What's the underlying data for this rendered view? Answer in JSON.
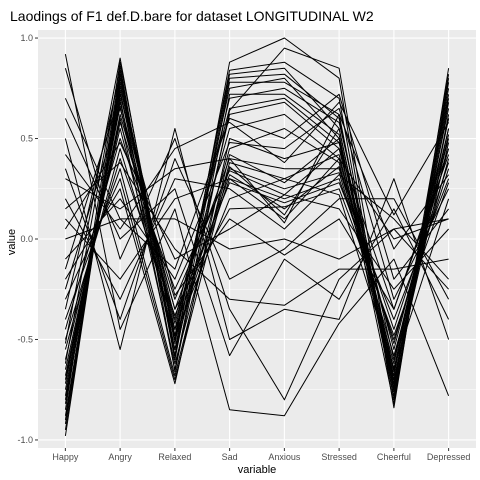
{
  "chart_data": {
    "type": "line",
    "title": "Laodings of F1 def.D.bare for dataset LONGITUDINAL W2",
    "xlabel": "variable",
    "ylabel": "value",
    "categories": [
      "Happy",
      "Angry",
      "Relaxed",
      "Sad",
      "Anxious",
      "Stressed",
      "Cheerful",
      "Depressed"
    ],
    "ylim": [
      -1.04,
      1.04
    ],
    "yticks": [
      -1.0,
      -0.5,
      0.0,
      0.5,
      1.0
    ],
    "ytick_labels": [
      "-1.0",
      "-0.5",
      "0.0",
      "0.5",
      "1.0"
    ],
    "grid": true,
    "panel_background": "#ebebeb",
    "grid_color": "#ffffff",
    "line_color": "#000000",
    "series": [
      {
        "values": [
          -0.98,
          0.82,
          -0.55,
          0.8,
          0.82,
          0.6,
          -0.7,
          0.6
        ]
      },
      {
        "values": [
          -0.95,
          0.8,
          -0.5,
          0.82,
          0.85,
          0.55,
          -0.72,
          0.7
        ]
      },
      {
        "values": [
          -0.92,
          0.78,
          -0.48,
          0.75,
          0.8,
          0.5,
          -0.65,
          0.65
        ]
      },
      {
        "values": [
          -0.9,
          0.84,
          -0.6,
          0.78,
          0.78,
          0.62,
          -0.75,
          0.75
        ]
      },
      {
        "values": [
          -0.88,
          0.76,
          -0.45,
          0.7,
          0.75,
          0.58,
          -0.6,
          0.55
        ]
      },
      {
        "values": [
          -0.85,
          0.88,
          -0.52,
          0.84,
          0.88,
          0.7,
          -0.8,
          0.8
        ]
      },
      {
        "values": [
          -0.82,
          0.72,
          -0.4,
          0.65,
          0.7,
          0.48,
          -0.55,
          0.5
        ]
      },
      {
        "values": [
          -0.8,
          0.7,
          -0.65,
          0.72,
          0.72,
          0.52,
          -0.78,
          0.68
        ]
      },
      {
        "values": [
          -0.78,
          0.74,
          -0.58,
          0.62,
          0.68,
          0.45,
          -0.68,
          0.72
        ]
      },
      {
        "values": [
          -0.75,
          0.68,
          -0.42,
          0.55,
          0.62,
          0.4,
          -0.62,
          0.6
        ]
      },
      {
        "values": [
          -0.72,
          0.66,
          -0.55,
          0.45,
          0.55,
          0.38,
          -0.7,
          0.48
        ]
      },
      {
        "values": [
          -0.7,
          0.62,
          -0.35,
          0.4,
          0.35,
          0.35,
          -0.52,
          0.45
        ]
      },
      {
        "values": [
          -0.68,
          0.6,
          -0.62,
          0.38,
          0.3,
          0.42,
          -0.66,
          0.52
        ]
      },
      {
        "values": [
          -0.65,
          0.58,
          -0.3,
          0.35,
          0.25,
          0.33,
          -0.58,
          0.4
        ]
      },
      {
        "values": [
          -0.6,
          0.55,
          -0.5,
          0.3,
          0.2,
          0.3,
          -0.5,
          0.35
        ]
      },
      {
        "values": [
          -0.55,
          0.45,
          -0.45,
          0.32,
          0.15,
          0.36,
          -0.45,
          0.38
        ]
      },
      {
        "values": [
          -0.5,
          0.4,
          -0.38,
          0.28,
          0.18,
          0.28,
          -0.4,
          0.3
        ]
      },
      {
        "values": [
          -0.45,
          0.5,
          -0.25,
          0.34,
          0.22,
          0.45,
          -0.35,
          0.42
        ]
      },
      {
        "values": [
          -0.4,
          0.35,
          -0.68,
          0.42,
          0.28,
          0.5,
          -0.72,
          0.55
        ]
      },
      {
        "values": [
          -0.3,
          0.3,
          -0.7,
          0.36,
          0.12,
          0.55,
          -0.76,
          0.62
        ]
      },
      {
        "values": [
          -0.2,
          0.25,
          -0.72,
          0.5,
          0.4,
          0.48,
          -0.82,
          0.78
        ]
      },
      {
        "values": [
          -0.1,
          0.2,
          -0.2,
          0.48,
          0.45,
          0.65,
          -0.3,
          0.25
        ]
      },
      {
        "values": [
          0.0,
          0.1,
          -0.15,
          0.6,
          0.5,
          0.72,
          -0.2,
          0.15
        ]
      },
      {
        "values": [
          0.1,
          -0.2,
          0.2,
          0.3,
          0.1,
          0.4,
          0.0,
          0.1
        ]
      },
      {
        "values": [
          0.2,
          -0.3,
          0.3,
          0.25,
          0.05,
          0.32,
          0.1,
          -0.2
        ]
      },
      {
        "values": [
          0.35,
          -0.4,
          0.4,
          -0.2,
          -0.05,
          0.2,
          0.2,
          -0.3
        ]
      },
      {
        "values": [
          0.5,
          -0.55,
          0.55,
          -0.5,
          -0.35,
          -0.4,
          0.3,
          -0.5
        ]
      },
      {
        "values": [
          0.6,
          0.0,
          0.25,
          -0.58,
          -0.1,
          -0.3,
          0.15,
          -0.4
        ]
      },
      {
        "values": [
          0.7,
          0.1,
          0.1,
          -0.05,
          0.0,
          -0.1,
          0.05,
          -0.25
        ]
      },
      {
        "values": [
          0.92,
          -0.45,
          0.15,
          -0.85,
          -0.88,
          -0.42,
          -0.1,
          -0.78
        ]
      },
      {
        "values": [
          0.85,
          -0.1,
          0.5,
          -0.35,
          -0.8,
          -0.2,
          0.05,
          0.1
        ]
      },
      {
        "values": [
          -0.52,
          0.9,
          -0.58,
          0.88,
          1.0,
          0.8,
          -0.84,
          0.85
        ]
      },
      {
        "values": [
          -0.35,
          0.82,
          -0.48,
          0.2,
          0.3,
          0.22,
          -0.64,
          0.2
        ]
      },
      {
        "values": [
          -0.25,
          0.65,
          -0.35,
          0.15,
          0.16,
          0.25,
          -0.48,
          0.28
        ]
      },
      {
        "values": [
          0.05,
          0.48,
          -0.1,
          0.05,
          0.22,
          0.15,
          -0.25,
          0.05
        ]
      },
      {
        "values": [
          0.15,
          0.38,
          -0.05,
          -0.3,
          -0.33,
          -0.15,
          -0.15,
          -0.1
        ]
      },
      {
        "values": [
          0.3,
          0.15,
          0.35,
          0.4,
          0.08,
          0.62,
          -0.05,
          0.32
        ]
      },
      {
        "values": [
          0.42,
          0.05,
          0.45,
          0.58,
          0.38,
          0.68,
          0.12,
          0.58
        ]
      },
      {
        "values": [
          -0.62,
          0.86,
          -0.66,
          0.64,
          0.95,
          0.85,
          -0.74,
          0.82
        ]
      },
      {
        "values": [
          -0.15,
          0.72,
          -0.28,
          0.1,
          -0.08,
          0.1,
          -0.35,
          0.45
        ]
      }
    ]
  }
}
